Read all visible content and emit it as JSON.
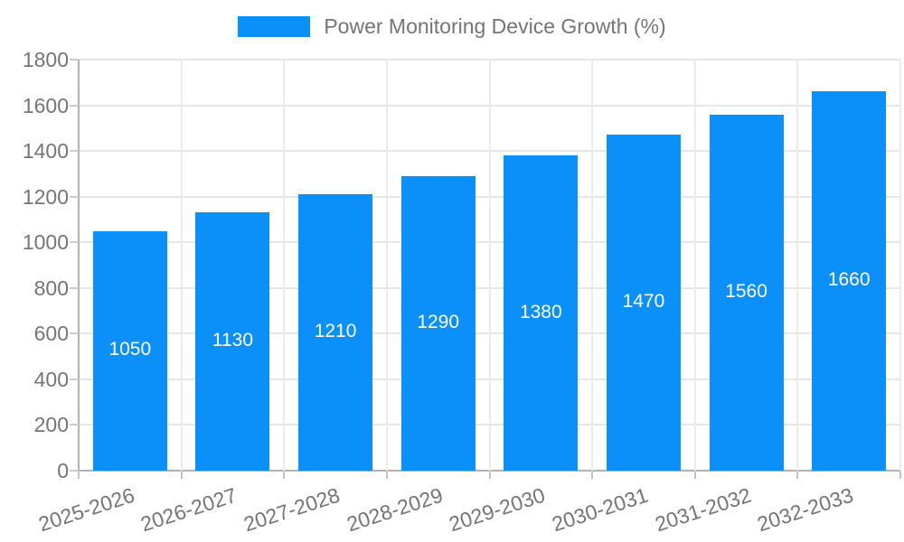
{
  "legend": {
    "label": "Power Monitoring Device Growth (%)"
  },
  "chart_data": {
    "type": "bar",
    "title": "Power Monitoring Device Growth (%)",
    "categories": [
      "2025-2026",
      "2026-2027",
      "2027-2028",
      "2028-2029",
      "2029-2030",
      "2030-2031",
      "2031-2032",
      "2032-2033"
    ],
    "values": [
      1050,
      1130,
      1210,
      1290,
      1380,
      1470,
      1560,
      1660
    ],
    "xlabel": "",
    "ylabel": "",
    "ylim": [
      0,
      1800
    ],
    "yticks": [
      0,
      200,
      400,
      600,
      800,
      1000,
      1200,
      1400,
      1600,
      1800
    ],
    "grid": true,
    "legend_position": "top-center",
    "bar_label_color": "#ffffff",
    "bar_color": "#0a90f8",
    "grid_color": "#e6e6e6",
    "axis_color": "#b1b1b1",
    "tick_text_color": "#757575"
  }
}
